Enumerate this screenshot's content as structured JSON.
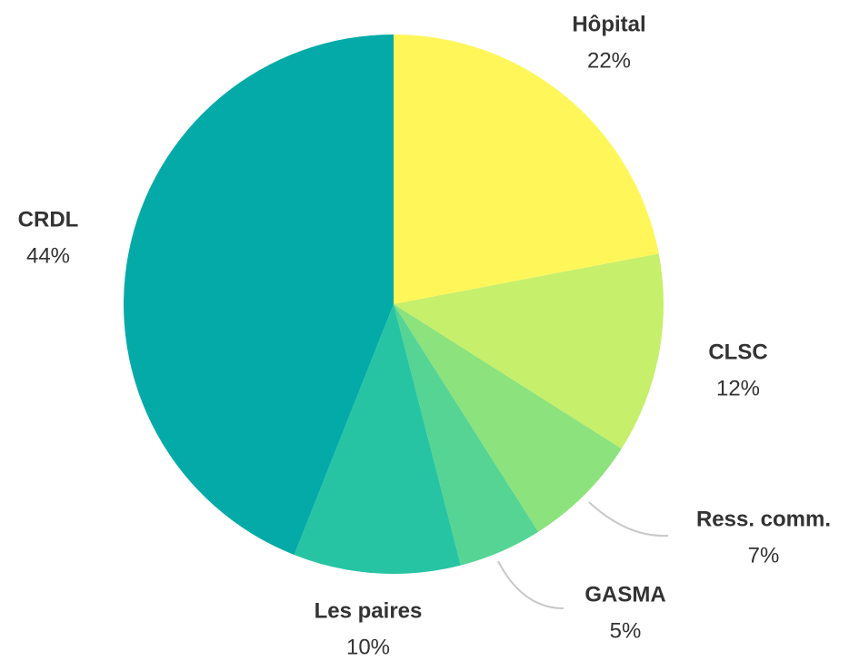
{
  "chart_data": {
    "type": "pie",
    "categories": [
      "Hôpital",
      "CLSC",
      "Ress. comm.",
      "GASMA",
      "Les paires",
      "CRDL"
    ],
    "values": [
      22,
      12,
      7,
      5,
      10,
      44
    ],
    "value_labels": [
      "22%",
      "12%",
      "7%",
      "5%",
      "10%",
      "44%"
    ],
    "colors": [
      "#fff75a",
      "#c6ef6b",
      "#8ce27c",
      "#55d494",
      "#27c4a4",
      "#03aaa8"
    ]
  }
}
